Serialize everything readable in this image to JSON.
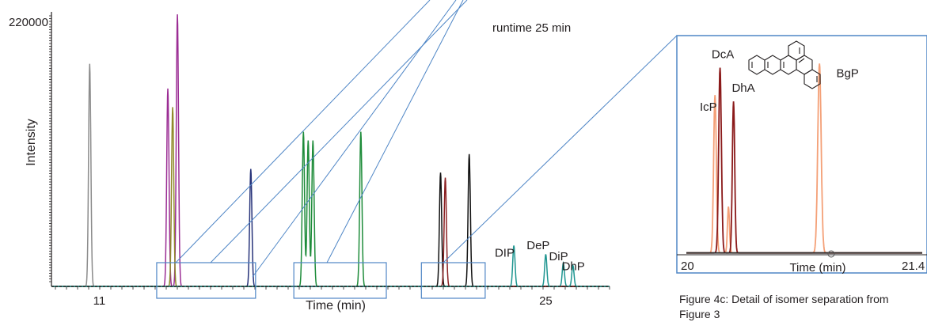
{
  "chart_data": [
    {
      "type": "line",
      "title": "",
      "annotation": "runtime 25 min",
      "xlabel": "Time (min)",
      "ylabel": "Intensity",
      "xlim": [
        9.5,
        27
      ],
      "ylim": [
        0,
        222000
      ],
      "x_ticks": [
        11,
        25
      ],
      "y_ticks": [
        220000
      ],
      "grid": false,
      "series": [
        {
          "color": "#8c8c8c",
          "peaks": [
            [
              10.7,
              180000
            ]
          ]
        },
        {
          "color": "#9b2d94",
          "peaks": [
            [
              13.15,
              160000
            ],
            [
              13.45,
              220000
            ]
          ]
        },
        {
          "color": "#8f8a2a",
          "peaks": [
            [
              13.3,
              145000
            ]
          ]
        },
        {
          "color": "#27337a",
          "peaks": [
            [
              15.75,
              95000
            ]
          ]
        },
        {
          "color": "#1e8c3a",
          "peaks": [
            [
              17.4,
              125000
            ],
            [
              17.55,
              118000
            ],
            [
              17.7,
              118000
            ],
            [
              19.2,
              125000
            ]
          ]
        },
        {
          "color": "#111111",
          "peaks": [
            [
              21.7,
              92000
            ],
            [
              22.6,
              107000
            ]
          ]
        },
        {
          "color": "#8b2123",
          "peaks": [
            [
              21.85,
              88000
            ]
          ]
        },
        {
          "color": "#1e9590",
          "peaks": [
            [
              24.0,
              33000
            ],
            [
              25.0,
              26000
            ],
            [
              25.55,
              19000
            ],
            [
              25.85,
              17000
            ]
          ]
        }
      ],
      "peak_labels": [
        {
          "text": "DIP",
          "x": 23.4,
          "y": 24000
        },
        {
          "text": "DeP",
          "x": 24.4,
          "y": 30000
        },
        {
          "text": "DiP",
          "x": 25.1,
          "y": 21000
        },
        {
          "text": "DhP",
          "x": 25.5,
          "y": 13000
        }
      ],
      "zoom_ranges": [
        [
          12.8,
          15.9
        ],
        [
          17.1,
          20.0
        ],
        [
          21.1,
          23.1
        ]
      ]
    },
    {
      "type": "line",
      "title": "",
      "xlabel": "Time (min)",
      "xlim": [
        20.0,
        21.4
      ],
      "x_ticks": [
        20.0,
        21.4
      ],
      "ylim": [
        0,
        100
      ],
      "series": [
        {
          "color": "#f4a077",
          "peaks": [
            [
              20.17,
              75,
              0.008
            ],
            [
              20.25,
              22,
              0.006
            ],
            [
              20.79,
              90,
              0.01
            ]
          ]
        },
        {
          "color": "#8b1a1a",
          "peaks": [
            [
              20.2,
              88,
              0.008
            ],
            [
              20.28,
              72,
              0.007
            ]
          ]
        },
        {
          "color": "#2d2d2d",
          "peaks": []
        }
      ],
      "peak_labels": [
        {
          "text": "DcA",
          "x": 20.15,
          "y": 93
        },
        {
          "text": "IcP",
          "x": 20.08,
          "y": 68
        },
        {
          "text": "DhA",
          "x": 20.27,
          "y": 77
        },
        {
          "text": "BgP",
          "x": 20.89,
          "y": 84
        }
      ],
      "caption": "Figure 4c: Detail of isomer separation from Figure 3"
    }
  ],
  "icons": [
    "molecule-structure-icon"
  ]
}
